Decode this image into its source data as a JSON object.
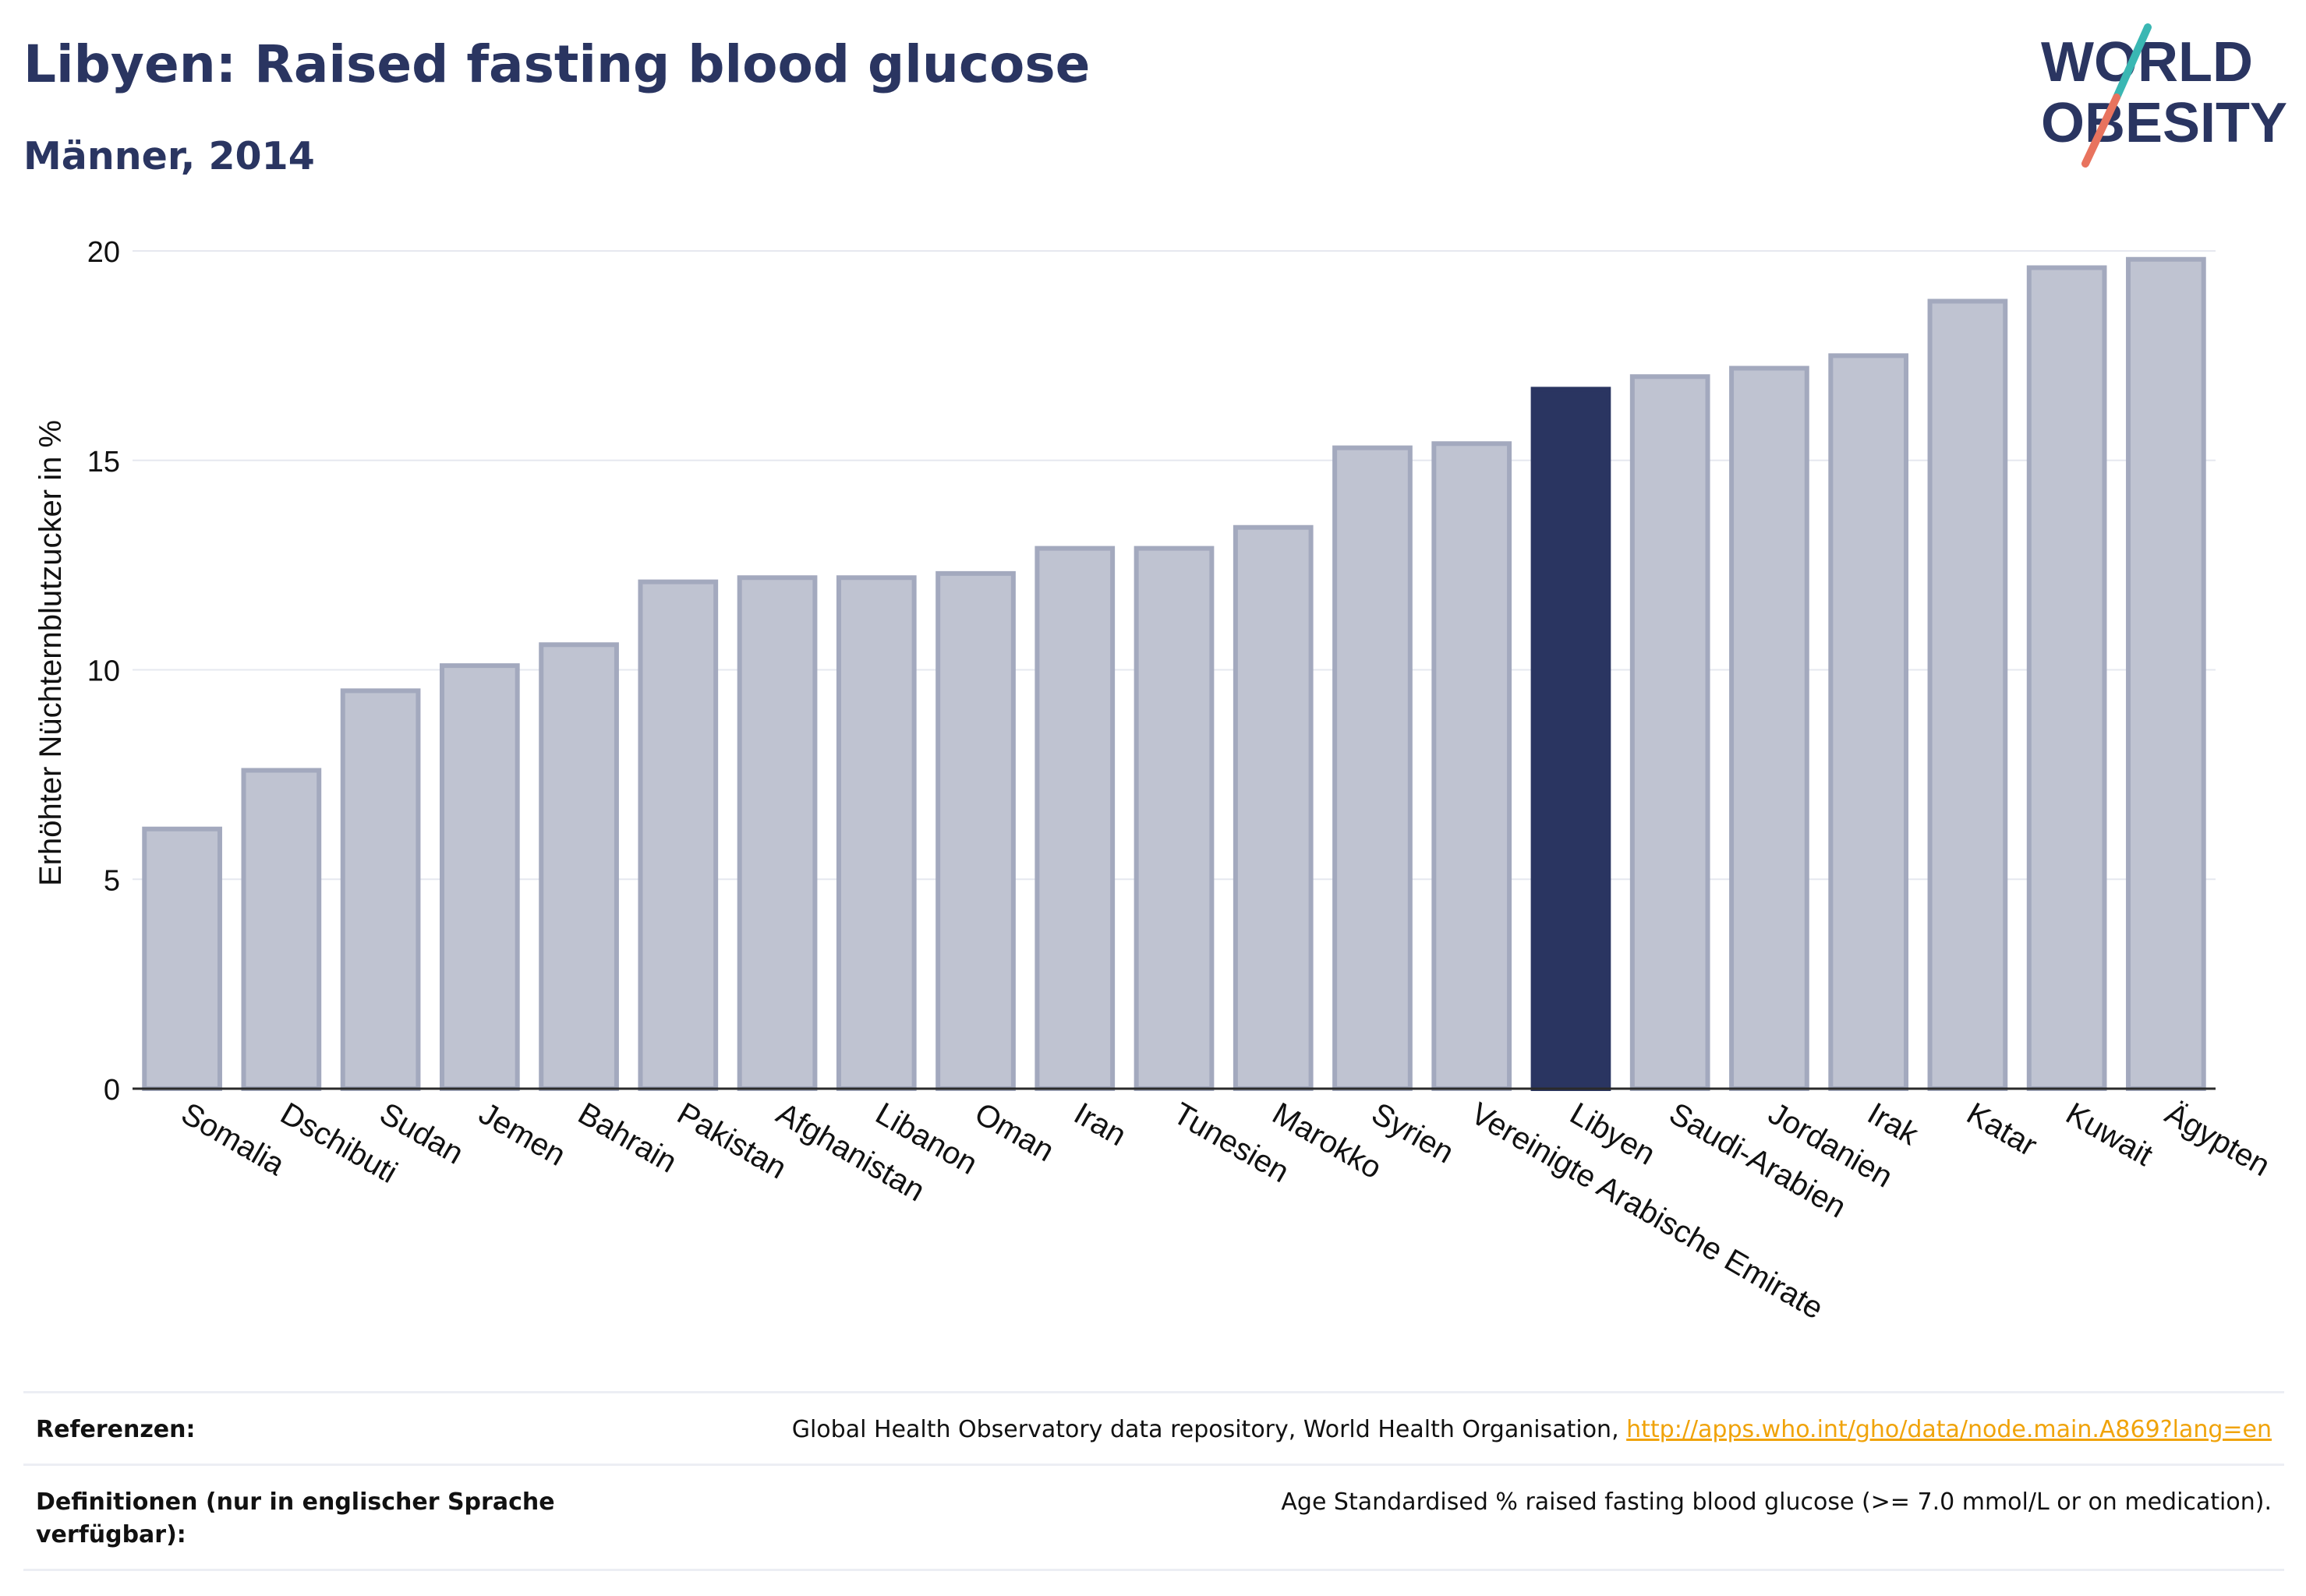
{
  "header": {
    "title": "Libyen: Raised fasting blood glucose",
    "subtitle": "Männer, 2014"
  },
  "logo": {
    "line1": "WORLD",
    "line2": "OBESITY"
  },
  "colors": {
    "bar": "#bfc3d1",
    "bar_stroke": "#a3a9be",
    "highlight": "#2a3561",
    "text": "#2a3561",
    "grid": "#e6e8ef",
    "link": "#f0a30a",
    "logo_teal": "#3ab7b3",
    "logo_coral": "#e8735e"
  },
  "chart_data": {
    "type": "bar",
    "title": "Libyen: Raised fasting blood glucose",
    "subtitle": "Männer, 2014",
    "xlabel": "",
    "ylabel": "Erhöhter Nüchternblutzucker in %",
    "ylim": [
      0,
      20
    ],
    "yticks": [
      0,
      5,
      10,
      15,
      20
    ],
    "grid": true,
    "highlight": "Libyen",
    "categories": [
      "Somalia",
      "Dschibuti",
      "Sudan",
      "Jemen",
      "Bahrain",
      "Pakistan",
      "Afghanistan",
      "Libanon",
      "Oman",
      "Iran",
      "Tunesien",
      "Marokko",
      "Syrien",
      "Vereinigte Arabische Emirate",
      "Libyen",
      "Saudi-Arabien",
      "Jordanien",
      "Irak",
      "Katar",
      "Kuwait",
      "Ägypten"
    ],
    "values": [
      6.2,
      7.6,
      9.5,
      10.1,
      10.6,
      12.1,
      12.2,
      12.2,
      12.3,
      12.9,
      12.9,
      13.4,
      15.3,
      15.4,
      16.7,
      17.0,
      17.2,
      17.5,
      18.8,
      19.6,
      19.8
    ]
  },
  "footer": {
    "references_label": "Referenzen:",
    "references_text": "Global Health Observatory data repository, World Health Organisation, ",
    "references_link": "http://apps.who.int/gho/data/node.main.A869?lang=en",
    "definitions_label": "Definitionen (nur in englischer Sprache verfügbar):",
    "definitions_text": "Age Standardised % raised fasting blood glucose (>= 7.0 mmol/L or on medication)."
  }
}
